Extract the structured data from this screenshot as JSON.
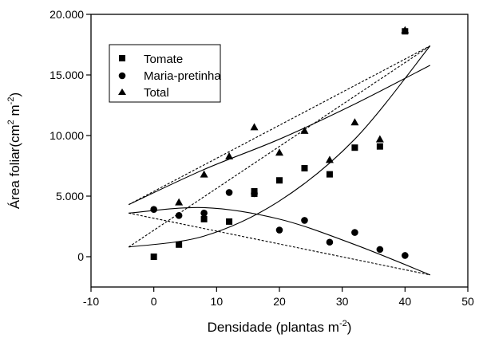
{
  "chart_data": {
    "type": "scatter",
    "xlabel": "Densidade (plantas m",
    "xlabel_sup": "-2",
    "xlabel_end": ")",
    "ylabel": "Área foliar(cm",
    "ylabel_sup1": "2",
    "ylabel_mid": " m",
    "ylabel_sup2": "-2",
    "ylabel_end": ")",
    "xlim": [
      -10,
      50
    ],
    "ylim": [
      -2500,
      20000
    ],
    "xticks": [
      -10,
      0,
      10,
      20,
      30,
      40,
      50
    ],
    "xtick_labels": [
      "-10",
      "0",
      "10",
      "20",
      "30",
      "40",
      "50"
    ],
    "yticks": [
      0,
      5000,
      10000,
      15000,
      20000
    ],
    "ytick_labels": [
      "0",
      "5.000",
      "10.000",
      "15.000",
      "20.000"
    ],
    "legend_position": "top-left",
    "series": [
      {
        "name": "Tomate",
        "marker": "square",
        "points": [
          [
            0,
            0
          ],
          [
            4,
            1000
          ],
          [
            8,
            3100
          ],
          [
            12,
            2900
          ],
          [
            16,
            5400
          ],
          [
            16,
            5200
          ],
          [
            20,
            6300
          ],
          [
            24,
            7300
          ],
          [
            28,
            6800
          ],
          [
            32,
            9000
          ],
          [
            36,
            9100
          ],
          [
            40,
            18600
          ]
        ]
      },
      {
        "name": "Maria-pretinha",
        "marker": "circle",
        "points": [
          [
            0,
            3900
          ],
          [
            4,
            3400
          ],
          [
            8,
            3600
          ],
          [
            12,
            5300
          ],
          [
            16,
            5200
          ],
          [
            20,
            2200
          ],
          [
            24,
            3000
          ],
          [
            28,
            1200
          ],
          [
            32,
            2000
          ],
          [
            36,
            600
          ],
          [
            40,
            100
          ]
        ]
      },
      {
        "name": "Total",
        "marker": "triangle",
        "points": [
          [
            4,
            4500
          ],
          [
            8,
            6800
          ],
          [
            12,
            8300
          ],
          [
            16,
            10700
          ],
          [
            20,
            8600
          ],
          [
            24,
            10400
          ],
          [
            28,
            8000
          ],
          [
            32,
            11100
          ],
          [
            36,
            9700
          ],
          [
            40,
            18700
          ]
        ]
      }
    ],
    "fitted_lines": [
      {
        "style": "solid",
        "points": [
          [
            -4,
            4300
          ],
          [
            8,
            7200
          ],
          [
            20,
            9700
          ],
          [
            32,
            12600
          ],
          [
            44,
            15800
          ]
        ]
      },
      {
        "style": "solid",
        "points": [
          [
            -4,
            800
          ],
          [
            8,
            1700
          ],
          [
            20,
            4600
          ],
          [
            32,
            9700
          ],
          [
            44,
            17400
          ]
        ]
      },
      {
        "style": "solid",
        "points": [
          [
            -4,
            3600
          ],
          [
            8,
            4050
          ],
          [
            20,
            3100
          ],
          [
            32,
            1000
          ],
          [
            44,
            -1500
          ]
        ]
      },
      {
        "style": "dashed",
        "points": [
          [
            -4,
            4300
          ],
          [
            44,
            17400
          ]
        ]
      },
      {
        "style": "dashed",
        "points": [
          [
            -4,
            800
          ],
          [
            44,
            17400
          ]
        ]
      },
      {
        "style": "dashed",
        "points": [
          [
            -4,
            3600
          ],
          [
            44,
            -1500
          ]
        ]
      }
    ]
  }
}
